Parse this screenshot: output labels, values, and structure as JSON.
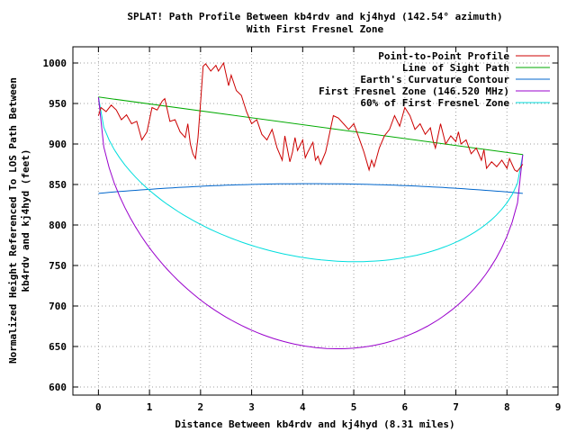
{
  "chart_data": {
    "type": "line",
    "title": "SPLAT! Path Profile Between kb4rdv and kj4hyd (142.54° azimuth)",
    "subtitle": "With First Fresnel Zone",
    "xlabel": "Distance Between kb4rdv and kj4hyd (8.31 miles)",
    "ylabel_line1": "Normalized Height Referenced To LOS Path Between",
    "ylabel_line2": "kb4rdv and kj4hyd (feet)",
    "xlim": [
      -0.5,
      9
    ],
    "ylim": [
      590,
      1020
    ],
    "x_ticks": [
      0,
      1,
      2,
      3,
      4,
      5,
      6,
      7,
      8,
      9
    ],
    "y_ticks": [
      600,
      650,
      700,
      750,
      800,
      850,
      900,
      950,
      1000
    ],
    "grid": true,
    "legend_position": "top-right",
    "series": [
      {
        "name": "Point-to-Point Profile",
        "color": "#cc0000",
        "points": [
          [
            0.0,
            935
          ],
          [
            0.05,
            945
          ],
          [
            0.15,
            940
          ],
          [
            0.25,
            948
          ],
          [
            0.35,
            942
          ],
          [
            0.45,
            930
          ],
          [
            0.55,
            936
          ],
          [
            0.65,
            925
          ],
          [
            0.75,
            928
          ],
          [
            0.85,
            905
          ],
          [
            0.95,
            915
          ],
          [
            1.0,
            930
          ],
          [
            1.05,
            945
          ],
          [
            1.15,
            942
          ],
          [
            1.25,
            953
          ],
          [
            1.3,
            956
          ],
          [
            1.4,
            928
          ],
          [
            1.5,
            930
          ],
          [
            1.6,
            915
          ],
          [
            1.7,
            908
          ],
          [
            1.75,
            925
          ],
          [
            1.8,
            900
          ],
          [
            1.85,
            888
          ],
          [
            1.9,
            882
          ],
          [
            1.95,
            908
          ],
          [
            2.0,
            950
          ],
          [
            2.05,
            996
          ],
          [
            2.1,
            999
          ],
          [
            2.2,
            990
          ],
          [
            2.3,
            997
          ],
          [
            2.35,
            990
          ],
          [
            2.45,
            1000
          ],
          [
            2.55,
            972
          ],
          [
            2.6,
            985
          ],
          [
            2.7,
            966
          ],
          [
            2.8,
            960
          ],
          [
            2.9,
            940
          ],
          [
            3.0,
            925
          ],
          [
            3.1,
            930
          ],
          [
            3.2,
            912
          ],
          [
            3.3,
            905
          ],
          [
            3.4,
            918
          ],
          [
            3.5,
            895
          ],
          [
            3.6,
            880
          ],
          [
            3.65,
            910
          ],
          [
            3.75,
            878
          ],
          [
            3.8,
            890
          ],
          [
            3.85,
            908
          ],
          [
            3.9,
            892
          ],
          [
            4.0,
            905
          ],
          [
            4.05,
            883
          ],
          [
            4.1,
            890
          ],
          [
            4.2,
            902
          ],
          [
            4.25,
            880
          ],
          [
            4.3,
            885
          ],
          [
            4.35,
            875
          ],
          [
            4.45,
            890
          ],
          [
            4.5,
            905
          ],
          [
            4.55,
            920
          ],
          [
            4.6,
            935
          ],
          [
            4.7,
            932
          ],
          [
            4.8,
            925
          ],
          [
            4.9,
            918
          ],
          [
            5.0,
            925
          ],
          [
            5.1,
            908
          ],
          [
            5.2,
            890
          ],
          [
            5.3,
            868
          ],
          [
            5.35,
            880
          ],
          [
            5.4,
            872
          ],
          [
            5.5,
            895
          ],
          [
            5.6,
            910
          ],
          [
            5.7,
            918
          ],
          [
            5.8,
            935
          ],
          [
            5.9,
            922
          ],
          [
            6.0,
            945
          ],
          [
            6.1,
            935
          ],
          [
            6.2,
            918
          ],
          [
            6.3,
            925
          ],
          [
            6.4,
            912
          ],
          [
            6.5,
            920
          ],
          [
            6.55,
            905
          ],
          [
            6.6,
            895
          ],
          [
            6.7,
            925
          ],
          [
            6.8,
            900
          ],
          [
            6.9,
            910
          ],
          [
            7.0,
            903
          ],
          [
            7.05,
            915
          ],
          [
            7.1,
            900
          ],
          [
            7.2,
            905
          ],
          [
            7.3,
            888
          ],
          [
            7.4,
            895
          ],
          [
            7.5,
            880
          ],
          [
            7.55,
            893
          ],
          [
            7.6,
            870
          ],
          [
            7.7,
            878
          ],
          [
            7.8,
            872
          ],
          [
            7.9,
            880
          ],
          [
            8.0,
            870
          ],
          [
            8.05,
            882
          ],
          [
            8.1,
            875
          ],
          [
            8.15,
            868
          ],
          [
            8.2,
            866
          ],
          [
            8.25,
            870
          ],
          [
            8.31,
            875
          ]
        ]
      },
      {
        "name": "Line of Sight Path",
        "color": "#00aa00",
        "points": [
          [
            0,
            958
          ],
          [
            8.31,
            887
          ]
        ]
      },
      {
        "name": "Earth's Curvature Contour",
        "color": "#0066cc",
        "shape": "curvature",
        "x_start": 0,
        "x_end": 8.31,
        "y_edge": 839,
        "y_mid": 851
      },
      {
        "name": "First Fresnel Zone (146.520 MHz)",
        "color": "#9900cc",
        "shape": "fresnel",
        "x_start": 0,
        "x_end": 8.31,
        "y_start": 958,
        "y_end": 887,
        "depth_mid": 273
      },
      {
        "name": "60% of First Fresnel Zone",
        "color": "#00dddd",
        "shape": "fresnel",
        "x_start": 0,
        "x_end": 8.31,
        "y_start": 958,
        "y_end": 887,
        "depth_mid": 164
      }
    ]
  }
}
